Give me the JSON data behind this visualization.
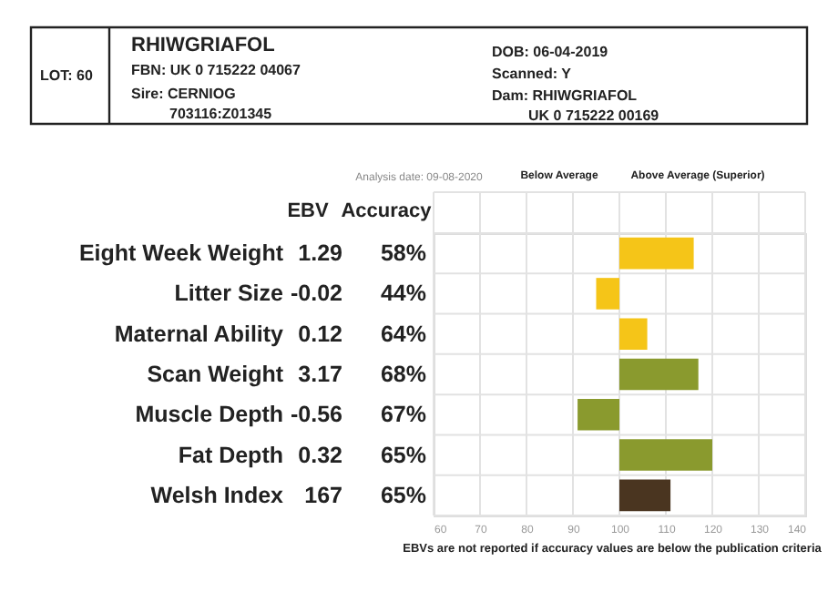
{
  "chart_data": {
    "type": "bar",
    "orientation": "horizontal",
    "categories": [
      "Eight Week Weight",
      "Litter Size",
      "Maternal Ability",
      "Scan Weight",
      "Muscle Depth",
      "Fat Depth",
      "Welsh Index"
    ],
    "base": [
      100,
      100,
      100,
      100,
      100,
      100,
      100
    ],
    "values": [
      16,
      -5,
      6,
      17,
      -9,
      20,
      11
    ],
    "colors": [
      "#f5c518",
      "#f5c518",
      "#f5c518",
      "#8a9a2e",
      "#8a9a2e",
      "#8a9a2e",
      "#4a3520"
    ],
    "xlim": [
      60,
      140
    ],
    "xticks": [
      60,
      70,
      80,
      90,
      100,
      110,
      120,
      130,
      140
    ],
    "grid": true,
    "annotations": [
      "LOT: 60",
      "RHIWGRIAFOL",
      "FBN: UK 0 715222 04067",
      "Sire: CERNIOG",
      "703116:Z01345",
      "DOB: 06-04-2019",
      "Scanned: Y",
      "Dam: RHIWGRIAFOL",
      "UK 0 715222 00169",
      "Analysis date: 09-08-2020",
      "Below Average",
      "Above Average (Superior)",
      "EBV",
      "Accuracy",
      "1.29",
      "-0.02",
      "0.12",
      "3.17",
      "-0.56",
      "0.32",
      "167",
      "58%",
      "44%",
      "64%",
      "68%",
      "67%",
      "65%",
      "65%",
      "EBVs are not reported if accuracy values are below the publication criteria"
    ]
  }
}
